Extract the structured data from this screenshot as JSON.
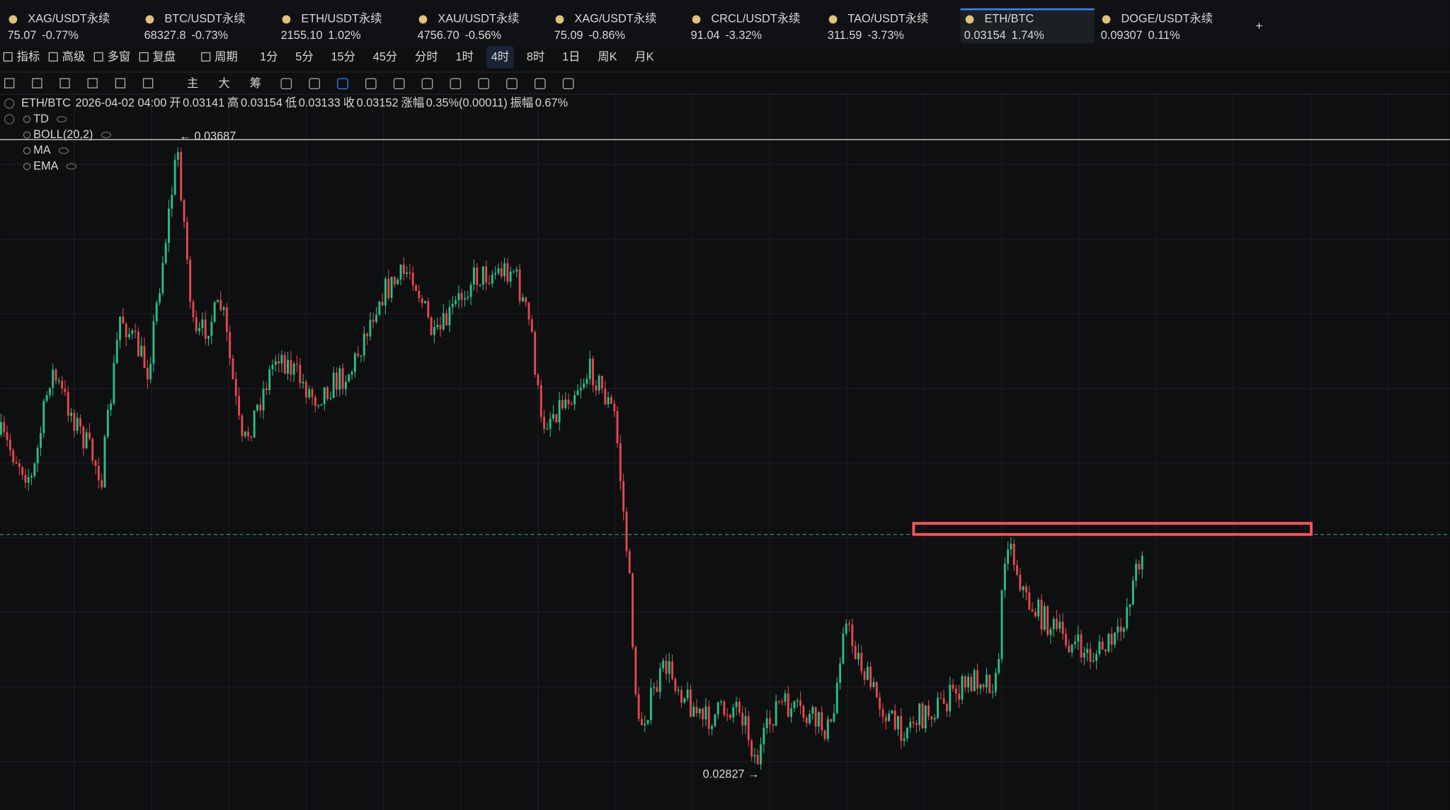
{
  "tabs": [
    {
      "symbol": "XAG/USDT永续",
      "price": "75.07",
      "change": "-0.77%",
      "color": "#e5484d"
    },
    {
      "symbol": "BTC/USDT永续",
      "price": "68327.8",
      "change": "-0.73%",
      "color": "#e6e6e6"
    },
    {
      "symbol": "ETH/USDT永续",
      "price": "2155.10",
      "change": "1.02%",
      "color": "#2ebd85"
    },
    {
      "symbol": "XAU/USDT永续",
      "price": "4756.70",
      "change": "-0.56%",
      "color": "#e5484d"
    },
    {
      "symbol": "XAG/USDT永续",
      "price": "75.09",
      "change": "-0.86%",
      "color": "#e6e6e6"
    },
    {
      "symbol": "CRCL/USDT永续",
      "price": "91.04",
      "change": "-3.32%",
      "color": "#e6e6e6"
    },
    {
      "symbol": "TAO/USDT永续",
      "price": "311.59",
      "change": "-3.73%",
      "color": "#e6e6e6"
    },
    {
      "symbol": "ETH/BTC",
      "price": "0.03154",
      "change": "1.74%",
      "color": "#e6e6e6"
    },
    {
      "symbol": "DOGE/USDT永续",
      "price": "0.09307",
      "change": "0.11%",
      "color": "#e6e6e6"
    }
  ],
  "active_tab": 7,
  "toolbar": [
    "指标",
    "高级",
    "多窗",
    "复盘",
    "周期"
  ],
  "intervals": [
    "1分",
    "5分",
    "15分",
    "45分",
    "分时",
    "1时",
    "4时",
    "8时",
    "1日",
    "周K",
    "月K"
  ],
  "active_interval": 6,
  "chart_modes": [
    "主",
    "大",
    "筹"
  ],
  "info": {
    "pair": "ETH/BTC",
    "time": "2026-04-02 04:00",
    "fields": [
      {
        "label": "开",
        "value": "0.03141"
      },
      {
        "label": "高",
        "value": "0.03154"
      },
      {
        "label": "低",
        "value": "0.03133"
      },
      {
        "label": "收",
        "value": "0.03152"
      },
      {
        "label": "涨幅",
        "value": "0.35%(0.00011)"
      },
      {
        "label": "振幅",
        "value": "0.67%"
      }
    ]
  },
  "indicators": [
    "TD",
    "BOLL(20,2)",
    "MA",
    "EMA"
  ],
  "high_label": "← 0.03687",
  "low_label": "0.02827 →"
}
